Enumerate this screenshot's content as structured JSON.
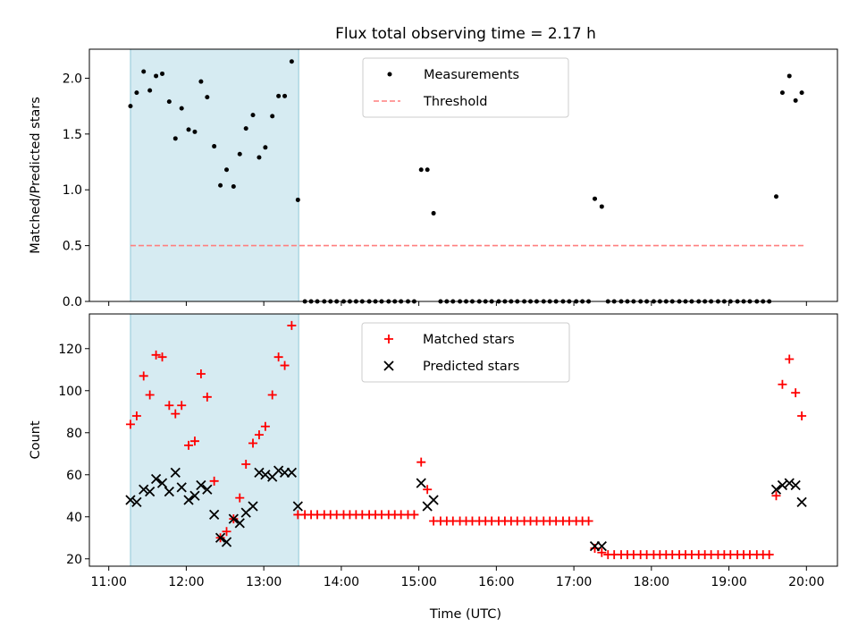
{
  "figure": {
    "title": "Flux total observing time = 2.17 h",
    "xlabel": "Time (UTC)",
    "xticks": [
      {
        "value": 11.0,
        "label": "11:00"
      },
      {
        "value": 12.0,
        "label": "12:00"
      },
      {
        "value": 13.0,
        "label": "13:00"
      },
      {
        "value": 14.0,
        "label": "14:00"
      },
      {
        "value": 15.0,
        "label": "15:00"
      },
      {
        "value": 16.0,
        "label": "16:00"
      },
      {
        "value": 17.0,
        "label": "17:00"
      },
      {
        "value": 18.0,
        "label": "18:00"
      },
      {
        "value": 19.0,
        "label": "19:00"
      },
      {
        "value": 20.0,
        "label": "20:00"
      }
    ]
  },
  "colors": {
    "measurements": "#000000",
    "threshold": "#ff7f7f",
    "matched": "#ff0000",
    "predicted": "#000000",
    "shade_fill": "#add8e6",
    "shade_edge": "#8fc8d8"
  },
  "chart_data": [
    {
      "type": "scatter",
      "panel": "top",
      "title": "Flux total observing time = 2.17 h",
      "xlabel": "",
      "ylabel": "Matched/Predicted stars",
      "xlim": [
        10.75,
        20.4
      ],
      "ylim": [
        0,
        2.26
      ],
      "yticks": [
        {
          "value": 0.0,
          "label": "0.0"
        },
        {
          "value": 0.5,
          "label": "0.5"
        },
        {
          "value": 1.0,
          "label": "1.0"
        },
        {
          "value": 1.5,
          "label": "1.5"
        },
        {
          "value": 2.0,
          "label": "2.0"
        }
      ],
      "shaded_region": {
        "x0": 11.28,
        "x1": 13.45
      },
      "threshold": {
        "name": "Threshold",
        "y": 0.5,
        "x0": 11.28,
        "x1": 19.97
      },
      "legend_position": "top-center",
      "series": [
        {
          "name": "Measurements",
          "x": [
            11.28,
            11.36,
            11.45,
            11.53,
            11.61,
            11.69,
            11.78,
            11.86,
            11.94,
            12.03,
            12.11,
            12.19,
            12.27,
            12.36,
            12.44,
            12.52,
            12.61,
            12.69,
            12.77,
            12.86,
            12.94,
            13.02,
            13.11,
            13.19,
            13.27,
            13.36,
            13.44,
            13.53,
            13.61,
            13.69,
            13.78,
            13.86,
            13.94,
            14.03,
            14.11,
            14.19,
            14.27,
            14.36,
            14.44,
            14.52,
            14.61,
            14.69,
            14.77,
            14.86,
            14.94,
            15.03,
            15.11,
            15.19,
            15.28,
            15.36,
            15.44,
            15.53,
            15.61,
            15.69,
            15.78,
            15.86,
            15.94,
            16.03,
            16.11,
            16.19,
            16.27,
            16.36,
            16.44,
            16.52,
            16.61,
            16.69,
            16.77,
            16.86,
            16.94,
            17.03,
            17.11,
            17.19,
            17.27,
            17.36,
            17.44,
            17.52,
            17.61,
            17.69,
            17.77,
            17.86,
            17.94,
            18.03,
            18.11,
            18.19,
            18.27,
            18.36,
            18.44,
            18.52,
            18.61,
            18.69,
            18.77,
            18.86,
            18.94,
            19.02,
            19.11,
            19.19,
            19.27,
            19.36,
            19.44,
            19.52,
            19.61,
            19.69,
            19.78,
            19.86,
            19.94
          ],
          "y": [
            1.75,
            1.87,
            2.06,
            1.89,
            2.02,
            2.04,
            1.79,
            1.46,
            1.73,
            1.54,
            1.52,
            1.97,
            1.83,
            1.39,
            1.04,
            1.18,
            1.03,
            1.32,
            1.55,
            1.67,
            1.29,
            1.38,
            1.66,
            1.84,
            1.84,
            2.15,
            0.91,
            0,
            0,
            0,
            0,
            0,
            0,
            0,
            0,
            0,
            0,
            0,
            0,
            0,
            0,
            0,
            0,
            0,
            0,
            1.18,
            1.18,
            0.79,
            0,
            0,
            0,
            0,
            0,
            0,
            0,
            0,
            0,
            0,
            0,
            0,
            0,
            0,
            0,
            0,
            0,
            0,
            0,
            0,
            0,
            0,
            0,
            0,
            0.92,
            0.85,
            0,
            0,
            0,
            0,
            0,
            0,
            0,
            0,
            0,
            0,
            0,
            0,
            0,
            0,
            0,
            0,
            0,
            0,
            0,
            0,
            0,
            0,
            0,
            0,
            0,
            0,
            0.94,
            1.87,
            2.02,
            1.8,
            1.87
          ]
        }
      ]
    },
    {
      "type": "scatter",
      "panel": "bottom",
      "xlabel": "Time (UTC)",
      "ylabel": "Count",
      "xlim": [
        10.75,
        20.4
      ],
      "ylim": [
        16.5,
        136.5
      ],
      "yticks": [
        {
          "value": 20,
          "label": "20"
        },
        {
          "value": 40,
          "label": "40"
        },
        {
          "value": 60,
          "label": "60"
        },
        {
          "value": 80,
          "label": "80"
        },
        {
          "value": 100,
          "label": "100"
        },
        {
          "value": 120,
          "label": "120"
        }
      ],
      "shaded_region": {
        "x0": 11.28,
        "x1": 13.45
      },
      "legend_position": "top-center",
      "series": [
        {
          "name": "Matched stars",
          "marker": "plus",
          "x": [
            11.28,
            11.36,
            11.45,
            11.53,
            11.61,
            11.69,
            11.78,
            11.86,
            11.94,
            12.03,
            12.11,
            12.19,
            12.27,
            12.36,
            12.44,
            12.52,
            12.61,
            12.69,
            12.77,
            12.86,
            12.94,
            13.02,
            13.11,
            13.19,
            13.27,
            13.36,
            13.44,
            13.53,
            13.61,
            13.69,
            13.78,
            13.86,
            13.94,
            14.03,
            14.11,
            14.19,
            14.27,
            14.36,
            14.44,
            14.52,
            14.61,
            14.69,
            14.77,
            14.86,
            14.94,
            15.03,
            15.11,
            15.19,
            15.28,
            15.36,
            15.44,
            15.53,
            15.61,
            15.69,
            15.78,
            15.86,
            15.94,
            16.03,
            16.11,
            16.19,
            16.27,
            16.36,
            16.44,
            16.52,
            16.61,
            16.69,
            16.77,
            16.86,
            16.94,
            17.03,
            17.11,
            17.19,
            17.27,
            17.36,
            17.44,
            17.52,
            17.61,
            17.69,
            17.77,
            17.86,
            17.94,
            18.03,
            18.11,
            18.19,
            18.27,
            18.36,
            18.44,
            18.52,
            18.61,
            18.69,
            18.77,
            18.86,
            18.94,
            19.02,
            19.11,
            19.19,
            19.27,
            19.36,
            19.44,
            19.52,
            19.61,
            19.69,
            19.78,
            19.86,
            19.94
          ],
          "y": [
            84,
            88,
            107,
            98,
            117,
            116,
            93,
            89,
            93,
            74,
            76,
            108,
            97,
            57,
            30,
            33,
            39,
            49,
            65,
            75,
            79,
            83,
            98,
            116,
            112,
            131,
            41,
            41,
            41,
            41,
            41,
            41,
            41,
            41,
            41,
            41,
            41,
            41,
            41,
            41,
            41,
            41,
            41,
            41,
            41,
            66,
            53,
            38,
            38,
            38,
            38,
            38,
            38,
            38,
            38,
            38,
            38,
            38,
            38,
            38,
            38,
            38,
            38,
            38,
            38,
            38,
            38,
            38,
            38,
            38,
            38,
            38,
            25,
            23,
            22,
            22,
            22,
            22,
            22,
            22,
            22,
            22,
            22,
            22,
            22,
            22,
            22,
            22,
            22,
            22,
            22,
            22,
            22,
            22,
            22,
            22,
            22,
            22,
            22,
            22,
            50,
            103,
            115,
            99,
            88
          ]
        },
        {
          "name": "Predicted stars",
          "marker": "cross",
          "x": [
            11.28,
            11.36,
            11.45,
            11.53,
            11.61,
            11.69,
            11.78,
            11.86,
            11.94,
            12.03,
            12.11,
            12.19,
            12.27,
            12.36,
            12.44,
            12.52,
            12.61,
            12.69,
            12.77,
            12.86,
            12.94,
            13.02,
            13.11,
            13.19,
            13.27,
            13.36,
            13.44,
            15.03,
            15.11,
            15.19,
            17.27,
            17.36,
            19.61,
            19.69,
            19.78,
            19.86,
            19.94
          ],
          "y": [
            48,
            47,
            53,
            52,
            58,
            56,
            52,
            61,
            54,
            48,
            50,
            55,
            53,
            41,
            30,
            28,
            39,
            37,
            42,
            45,
            61,
            60,
            59,
            62,
            61,
            61,
            45,
            56,
            45,
            48,
            26,
            26,
            53,
            55,
            56,
            55,
            47
          ]
        }
      ]
    }
  ]
}
